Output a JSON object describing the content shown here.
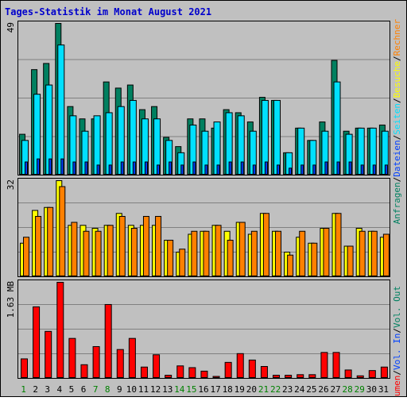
{
  "title": "Tages-Statistik im Monat August 2021",
  "colors": {
    "background": "#c0c0c0",
    "frame": "#000000",
    "title": "#0000cc",
    "anfragen": "#008060",
    "dateien": "#0040ff",
    "seiten": "#00e0ff",
    "besuche": "#ffff00",
    "rechner": "#ff8000",
    "vol_in": "#0040ff",
    "vol_out": "#008060",
    "volumen": "#ff0000",
    "weekday_label": "#000000",
    "weekend_label": "#008000"
  },
  "right_legend": {
    "top": [
      {
        "text": "Anfragen",
        "color": "#008060"
      },
      {
        "text": "/",
        "color": "#000000"
      },
      {
        "text": "Dateien",
        "color": "#0040ff"
      },
      {
        "text": "/",
        "color": "#000000"
      },
      {
        "text": "Seiten",
        "color": "#00e0ff"
      },
      {
        "text": "/",
        "color": "#000000"
      },
      {
        "text": "Besuche",
        "color": "#ffff00"
      },
      {
        "text": "/",
        "color": "#000000"
      },
      {
        "text": "Rechner",
        "color": "#ff8000"
      }
    ],
    "bottom": [
      {
        "text": "Volumen",
        "color": "#ff0000"
      },
      {
        "text": "/",
        "color": "#000000"
      },
      {
        "text": "Vol. In",
        "color": "#0040ff"
      },
      {
        "text": "/",
        "color": "#000000"
      },
      {
        "text": "Vol. Out",
        "color": "#008060"
      }
    ]
  },
  "chart_data": [
    {
      "type": "bar",
      "panel": "hits",
      "y_max_label": "49",
      "ylim": [
        0,
        49
      ],
      "grid": true,
      "categories": [
        "1",
        "2",
        "3",
        "4",
        "5",
        "6",
        "7",
        "8",
        "9",
        "10",
        "11",
        "12",
        "13",
        "14",
        "15",
        "16",
        "17",
        "18",
        "19",
        "20",
        "21",
        "22",
        "23",
        "24",
        "25",
        "26",
        "27",
        "28",
        "29",
        "30",
        "31"
      ],
      "series": [
        {
          "name": "Anfragen",
          "values": [
            13,
            34,
            36,
            49,
            22,
            18,
            18,
            30,
            28,
            29,
            21,
            22,
            12,
            9,
            18,
            18,
            15,
            21,
            20,
            17,
            25,
            24,
            7,
            15,
            11,
            17,
            37,
            14,
            15,
            15,
            16
          ]
        },
        {
          "name": "Seiten",
          "values": [
            11,
            26,
            29,
            42,
            19,
            14,
            19,
            20,
            22,
            24,
            18,
            18,
            11,
            7,
            16,
            14,
            17,
            20,
            19,
            14,
            24,
            24,
            7,
            15,
            11,
            14,
            30,
            13,
            15,
            15,
            14
          ]
        },
        {
          "name": "Dateien",
          "values": [
            4,
            5,
            5,
            5,
            4,
            4,
            3,
            3,
            4,
            4,
            4,
            3,
            4,
            3,
            4,
            3,
            3,
            4,
            4,
            3,
            4,
            3,
            2,
            3,
            3,
            4,
            4,
            4,
            3,
            3,
            3
          ]
        }
      ]
    },
    {
      "type": "bar",
      "panel": "visits",
      "y_max_label": "32",
      "ylim": [
        0,
        32
      ],
      "grid": true,
      "categories": [
        "1",
        "2",
        "3",
        "4",
        "5",
        "6",
        "7",
        "8",
        "9",
        "10",
        "11",
        "12",
        "13",
        "14",
        "15",
        "16",
        "17",
        "18",
        "19",
        "20",
        "21",
        "22",
        "23",
        "24",
        "25",
        "26",
        "27",
        "28",
        "29",
        "30",
        "31"
      ],
      "series": [
        {
          "name": "Besuche",
          "values": [
            11,
            22,
            23,
            32,
            17,
            17,
            16,
            17,
            21,
            17,
            17,
            17,
            12,
            8,
            14,
            15,
            17,
            15,
            18,
            14,
            21,
            15,
            8,
            13,
            11,
            16,
            21,
            10,
            16,
            15,
            13
          ]
        },
        {
          "name": "Rechner",
          "values": [
            13,
            20,
            23,
            30,
            18,
            15,
            15,
            17,
            20,
            16,
            20,
            20,
            12,
            9,
            15,
            15,
            17,
            12,
            18,
            15,
            21,
            15,
            7,
            15,
            11,
            16,
            21,
            10,
            15,
            15,
            14
          ]
        }
      ]
    },
    {
      "type": "bar",
      "panel": "volume",
      "y_max_label": "1.63 MB",
      "ylim": [
        0,
        1.63
      ],
      "grid": true,
      "categories": [
        "1",
        "2",
        "3",
        "4",
        "5",
        "6",
        "7",
        "8",
        "9",
        "10",
        "11",
        "12",
        "13",
        "14",
        "15",
        "16",
        "17",
        "18",
        "19",
        "20",
        "21",
        "22",
        "23",
        "24",
        "25",
        "26",
        "27",
        "28",
        "29",
        "30",
        "31"
      ],
      "series": [
        {
          "name": "Volumen",
          "values": [
            0.32,
            1.21,
            0.79,
            1.63,
            0.67,
            0.22,
            0.53,
            1.25,
            0.48,
            0.67,
            0.18,
            0.39,
            0.04,
            0.2,
            0.17,
            0.11,
            0.02,
            0.26,
            0.41,
            0.3,
            0.19,
            0.04,
            0.04,
            0.05,
            0.05,
            0.43,
            0.43,
            0.13,
            0.03,
            0.12,
            0.18
          ]
        }
      ]
    }
  ],
  "x_labels": [
    {
      "text": "1",
      "weekend": true
    },
    {
      "text": "2",
      "weekend": false
    },
    {
      "text": "3",
      "weekend": false
    },
    {
      "text": "4",
      "weekend": false
    },
    {
      "text": "5",
      "weekend": false
    },
    {
      "text": "6",
      "weekend": false
    },
    {
      "text": "7",
      "weekend": true
    },
    {
      "text": "8",
      "weekend": true
    },
    {
      "text": "9",
      "weekend": false
    },
    {
      "text": "10",
      "weekend": false
    },
    {
      "text": "11",
      "weekend": false
    },
    {
      "text": "12",
      "weekend": false
    },
    {
      "text": "13",
      "weekend": false
    },
    {
      "text": "14",
      "weekend": true
    },
    {
      "text": "15",
      "weekend": true
    },
    {
      "text": "16",
      "weekend": false
    },
    {
      "text": "17",
      "weekend": false
    },
    {
      "text": "18",
      "weekend": false
    },
    {
      "text": "19",
      "weekend": false
    },
    {
      "text": "20",
      "weekend": false
    },
    {
      "text": "21",
      "weekend": true
    },
    {
      "text": "22",
      "weekend": true
    },
    {
      "text": "23",
      "weekend": false
    },
    {
      "text": "24",
      "weekend": false
    },
    {
      "text": "25",
      "weekend": false
    },
    {
      "text": "26",
      "weekend": false
    },
    {
      "text": "27",
      "weekend": false
    },
    {
      "text": "28",
      "weekend": true
    },
    {
      "text": "29",
      "weekend": true
    },
    {
      "text": "30",
      "weekend": false
    },
    {
      "text": "31",
      "weekend": false
    }
  ]
}
